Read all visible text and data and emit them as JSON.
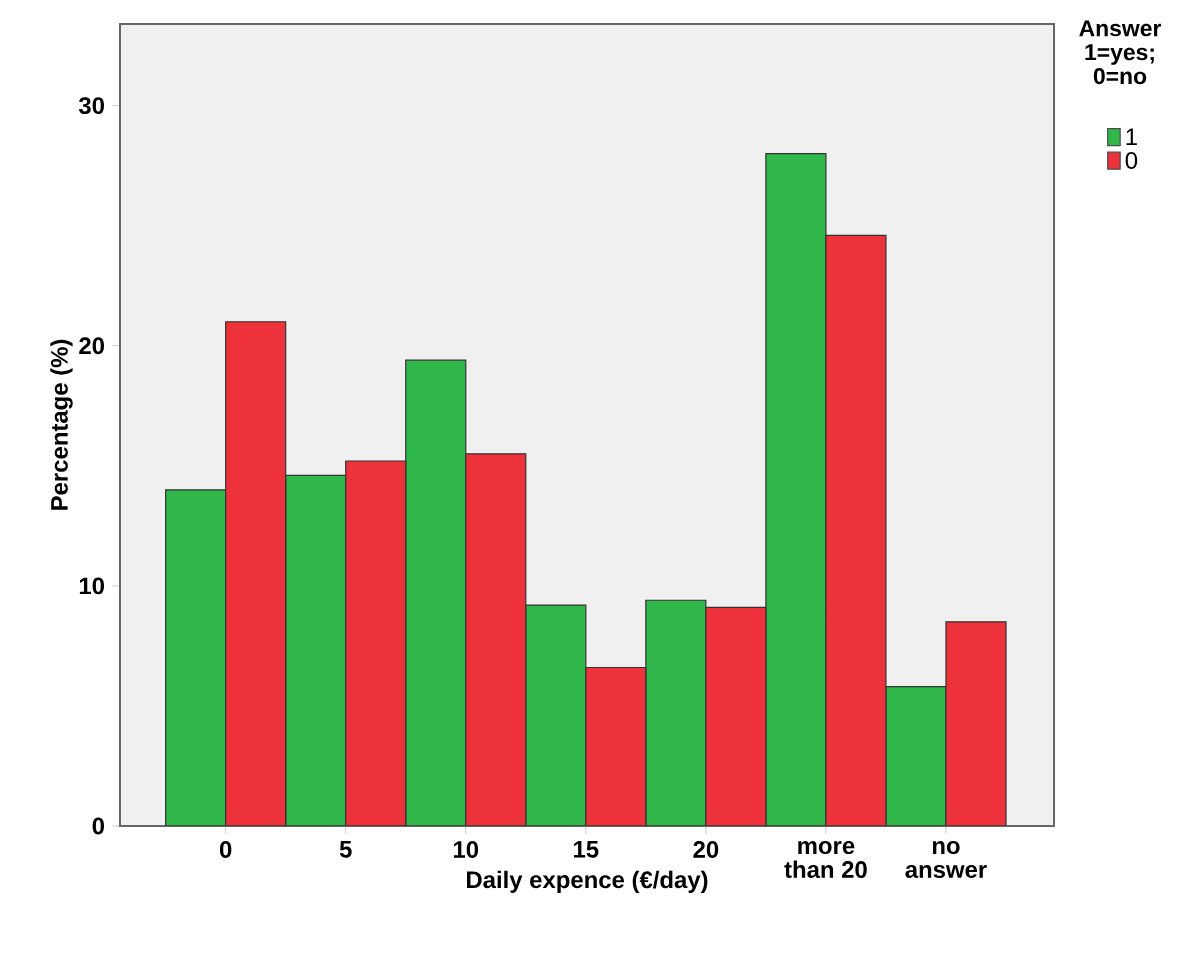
{
  "chart_data": {
    "type": "bar",
    "xlabel": "Daily expence (€/day)",
    "ylabel": "Percentage (%)",
    "legend_title": "Answer 1=yes; 0=no",
    "categories": [
      "0",
      "5",
      "10",
      "15",
      "20",
      "more than 20",
      "no answer"
    ],
    "series": [
      {
        "name": "1",
        "color": "#30b84a",
        "values": [
          14.0,
          14.6,
          19.4,
          9.2,
          9.4,
          28.0,
          5.8
        ]
      },
      {
        "name": "0",
        "color": "#ee323c",
        "values": [
          21.0,
          15.2,
          15.5,
          6.6,
          9.1,
          24.6,
          8.5
        ]
      }
    ],
    "ylim": [
      0,
      33.4
    ],
    "yticks": [
      0,
      10,
      20,
      30
    ],
    "grid": false,
    "legend": "right"
  }
}
